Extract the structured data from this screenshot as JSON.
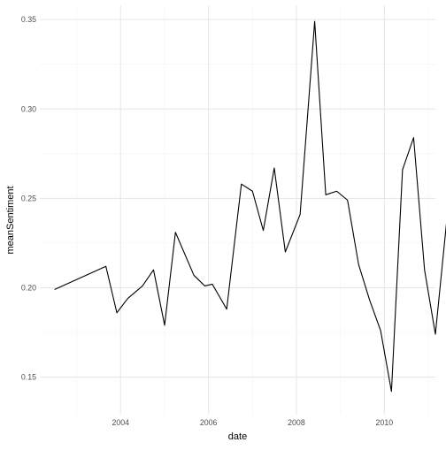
{
  "chart_data": {
    "type": "line",
    "title": "",
    "xlabel": "date",
    "ylabel": "meanSentiment",
    "grid": true,
    "legend": "none",
    "xlim": [
      "2002-03-01",
      "2011-03-01"
    ],
    "ylim": [
      0.129,
      0.358
    ],
    "x_ticks": [
      "2004-01-01",
      "2006-01-01",
      "2008-01-01",
      "2010-01-01"
    ],
    "x_tick_labels": [
      "2004",
      "2006",
      "2008",
      "2010"
    ],
    "y_ticks": [
      0.15,
      0.2,
      0.25,
      0.3,
      0.35
    ],
    "y_tick_labels": [
      "0.15",
      "0.20",
      "0.25",
      "0.30",
      "0.35"
    ],
    "series": [
      {
        "color": "#000000",
        "points": [
          {
            "x": "2002-07-01",
            "y": 0.199
          },
          {
            "x": "2003-09-01",
            "y": 0.212
          },
          {
            "x": "2003-12-01",
            "y": 0.186
          },
          {
            "x": "2004-03-01",
            "y": 0.194
          },
          {
            "x": "2004-07-01",
            "y": 0.201
          },
          {
            "x": "2004-10-01",
            "y": 0.21
          },
          {
            "x": "2005-01-01",
            "y": 0.179
          },
          {
            "x": "2005-04-01",
            "y": 0.231
          },
          {
            "x": "2005-09-01",
            "y": 0.207
          },
          {
            "x": "2005-12-01",
            "y": 0.201
          },
          {
            "x": "2006-02-01",
            "y": 0.202
          },
          {
            "x": "2006-06-01",
            "y": 0.188
          },
          {
            "x": "2006-10-01",
            "y": 0.258
          },
          {
            "x": "2007-01-01",
            "y": 0.254
          },
          {
            "x": "2007-04-01",
            "y": 0.232
          },
          {
            "x": "2007-07-01",
            "y": 0.267
          },
          {
            "x": "2007-10-01",
            "y": 0.22
          },
          {
            "x": "2008-02-01",
            "y": 0.241
          },
          {
            "x": "2008-06-01",
            "y": 0.349
          },
          {
            "x": "2008-09-01",
            "y": 0.252
          },
          {
            "x": "2008-12-01",
            "y": 0.254
          },
          {
            "x": "2009-03-01",
            "y": 0.249
          },
          {
            "x": "2009-06-01",
            "y": 0.213
          },
          {
            "x": "2009-09-01",
            "y": 0.193
          },
          {
            "x": "2009-12-01",
            "y": 0.176
          },
          {
            "x": "2010-03-01",
            "y": 0.142
          },
          {
            "x": "2010-06-01",
            "y": 0.266
          },
          {
            "x": "2010-09-01",
            "y": 0.284
          },
          {
            "x": "2010-12-01",
            "y": 0.21
          },
          {
            "x": "2011-03-01",
            "y": 0.174
          },
          {
            "x": "2011-06-01",
            "y": 0.236
          }
        ]
      }
    ]
  }
}
